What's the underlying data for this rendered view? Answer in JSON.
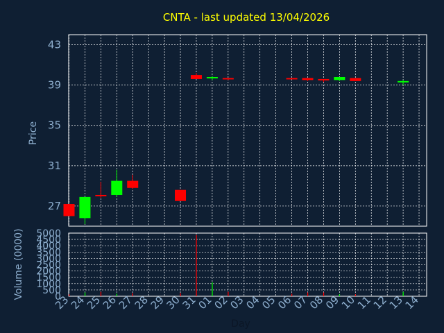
{
  "chart_data": [
    {
      "type": "candlestick",
      "title": "CNTA - last updated 13/04/2026",
      "ylabel": "Price",
      "xlabel": "Day",
      "ylim": [
        25,
        44
      ],
      "yticks": [
        27,
        31,
        35,
        39,
        43
      ],
      "grid": true,
      "colors": {
        "up": "#00ff00",
        "down": "#ff0000",
        "grid": "#ffffff",
        "background": "#0f1f33",
        "title": "#ffff00",
        "axis_text": "#8fb0d0"
      },
      "categories": [
        "23",
        "24",
        "25",
        "26",
        "27",
        "28",
        "29",
        "30",
        "31",
        "01",
        "02",
        "03",
        "04",
        "05",
        "06",
        "07",
        "08",
        "09",
        "10",
        "11",
        "12",
        "13",
        "14"
      ],
      "candles": [
        {
          "day": "23",
          "open": 27.2,
          "high": 27.2,
          "low": 26.0,
          "close": 26.0
        },
        {
          "day": "24",
          "open": 25.8,
          "high": 27.9,
          "low": 25.2,
          "close": 27.9
        },
        {
          "day": "25",
          "open": 28.1,
          "high": 29.4,
          "low": 27.8,
          "close": 28.0
        },
        {
          "day": "26",
          "open": 28.1,
          "high": 30.6,
          "low": 27.9,
          "close": 29.5
        },
        {
          "day": "27",
          "open": 29.5,
          "high": 30.1,
          "low": 28.7,
          "close": 28.8
        },
        {
          "day": "30",
          "open": 28.6,
          "high": 28.6,
          "low": 27.5,
          "close": 27.5
        },
        {
          "day": "31",
          "open": 40.0,
          "high": 40.2,
          "low": 39.6,
          "close": 39.6
        },
        {
          "day": "01",
          "open": 39.7,
          "high": 39.9,
          "low": 39.5,
          "close": 39.8
        },
        {
          "day": "02",
          "open": 39.7,
          "high": 39.7,
          "low": 39.5,
          "close": 39.6
        },
        {
          "day": "06",
          "open": 39.7,
          "high": 39.7,
          "low": 39.6,
          "close": 39.6
        },
        {
          "day": "07",
          "open": 39.7,
          "high": 39.7,
          "low": 39.4,
          "close": 39.5
        },
        {
          "day": "08",
          "open": 39.6,
          "high": 39.6,
          "low": 39.3,
          "close": 39.5
        },
        {
          "day": "09",
          "open": 39.5,
          "high": 39.8,
          "low": 39.4,
          "close": 39.8
        },
        {
          "day": "10",
          "open": 39.7,
          "high": 39.7,
          "low": 39.4,
          "close": 39.4
        },
        {
          "day": "13",
          "open": 39.3,
          "high": 39.5,
          "low": 39.0,
          "close": 39.4
        }
      ]
    },
    {
      "type": "bar",
      "ylabel": "Volume (0000)",
      "ylim": [
        0,
        5000
      ],
      "yticks": [
        0,
        500,
        1000,
        1500,
        2000,
        2500,
        3000,
        3500,
        4000,
        4500,
        5000
      ],
      "grid": true,
      "categories": [
        "23",
        "24",
        "25",
        "26",
        "27",
        "30",
        "31",
        "01",
        "02",
        "06",
        "07",
        "08",
        "09",
        "10",
        "13"
      ],
      "values": [
        150,
        300,
        350,
        200,
        250,
        250,
        4850,
        1100,
        350,
        200,
        300,
        300,
        150,
        150,
        350
      ],
      "direction": [
        "down",
        "up",
        "down",
        "up",
        "down",
        "down",
        "down",
        "up",
        "down",
        "down",
        "down",
        "down",
        "up",
        "down",
        "up"
      ]
    }
  ]
}
